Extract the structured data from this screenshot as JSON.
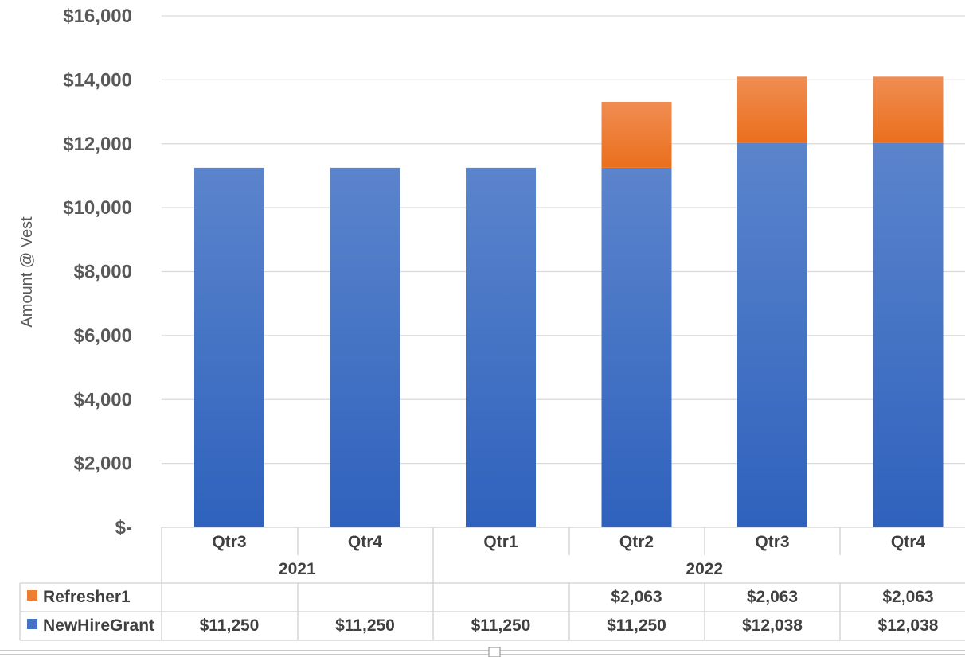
{
  "chart_data": {
    "type": "bar",
    "stacked": true,
    "ylabel": "Amount @ Vest",
    "ylim": [
      0,
      16000
    ],
    "yticks": [
      0,
      2000,
      4000,
      6000,
      8000,
      10000,
      12000,
      14000,
      16000
    ],
    "ytick_labels": [
      "$-",
      "$2,000",
      "$4,000",
      "$6,000",
      "$8,000",
      "$10,000",
      "$12,000",
      "$14,000",
      "$16,000"
    ],
    "grid": true,
    "categories": [
      "Qtr3",
      "Qtr4",
      "Qtr1",
      "Qtr2",
      "Qtr3",
      "Qtr4"
    ],
    "category_groups": [
      {
        "label": "2021",
        "span": 2
      },
      {
        "label": "2022",
        "span": 4
      }
    ],
    "series": [
      {
        "name": "NewHireGrant",
        "color": "#4472c4",
        "values": [
          11250,
          11250,
          11250,
          11250,
          12038,
          12038
        ],
        "labels": [
          "$11,250",
          "$11,250",
          "$11,250",
          "$11,250",
          "$12,038",
          "$12,038"
        ]
      },
      {
        "name": "Refresher1",
        "color": "#ed7d31",
        "values": [
          0,
          0,
          0,
          2063,
          2063,
          2063
        ],
        "labels": [
          "",
          "",
          "",
          "$2,063",
          "$2,063",
          "$2,063"
        ]
      }
    ],
    "data_table": true
  }
}
